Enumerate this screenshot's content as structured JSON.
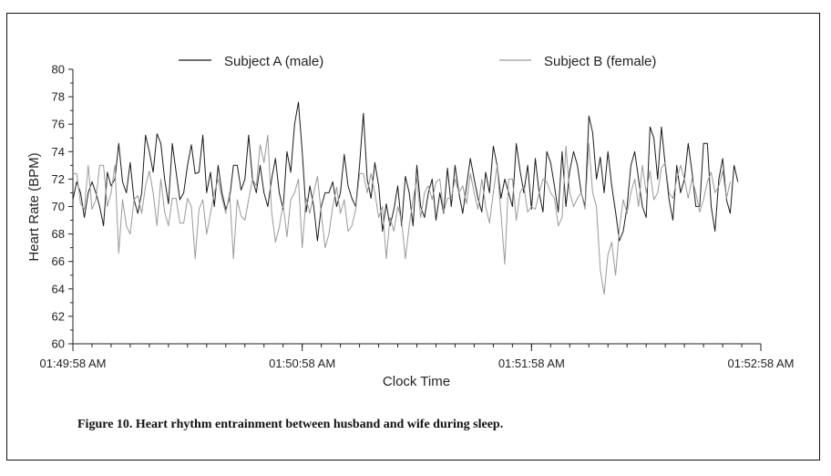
{
  "caption": "Figure 10. Heart rhythm entrainment between husband and wife during sleep.",
  "chart_data": {
    "type": "line",
    "title": "",
    "xlabel": "Clock Time",
    "ylabel": "Heart Rate (BPM)",
    "ylim": [
      60,
      80
    ],
    "yticks": [
      60,
      62,
      64,
      66,
      68,
      70,
      72,
      74,
      76,
      78,
      80
    ],
    "xlim_seconds": [
      0,
      180
    ],
    "xticks": [
      {
        "t": 0,
        "label": "01:49:58 AM"
      },
      {
        "t": 60,
        "label": "01:50:58 AM"
      },
      {
        "t": 120,
        "label": "01:51:58 AM"
      },
      {
        "t": 180,
        "label": "01:52:58 AM"
      }
    ],
    "grid": false,
    "legend": "top",
    "series": [
      {
        "name": "Subject A (male)",
        "color": "#1a1a1a",
        "t_step_seconds": 1,
        "values": [
          70.5,
          71.8,
          71.0,
          69.2,
          71.0,
          71.8,
          71.0,
          70.0,
          68.6,
          72.5,
          71.5,
          72.0,
          74.6,
          71.8,
          71.0,
          73.2,
          70.5,
          69.5,
          71.0,
          75.2,
          74.0,
          72.5,
          75.3,
          74.6,
          72.0,
          70.2,
          74.6,
          72.5,
          70.5,
          71.0,
          73.0,
          74.5,
          72.4,
          72.5,
          75.2,
          71.0,
          72.5,
          70.0,
          73.0,
          71.0,
          69.8,
          70.6,
          73.0,
          73.0,
          71.2,
          72.0,
          75.2,
          72.0,
          71.0,
          73.0,
          71.0,
          70.0,
          72.0,
          73.5,
          71.0,
          69.8,
          74.0,
          72.5,
          76.0,
          77.6,
          74.0,
          69.6,
          71.5,
          70.0,
          67.5,
          70.0,
          71.0,
          71.0,
          71.8,
          70.0,
          71.0,
          73.8,
          71.5,
          70.6,
          70.0,
          73.0,
          76.8,
          72.0,
          70.6,
          73.2,
          71.5,
          68.2,
          70.2,
          68.6,
          69.8,
          71.5,
          68.6,
          72.2,
          71.0,
          68.6,
          73.0,
          70.0,
          69.2,
          71.0,
          72.0,
          69.0,
          71.0,
          69.5,
          72.8,
          70.0,
          73.0,
          71.0,
          69.5,
          71.5,
          73.5,
          72.0,
          70.6,
          69.6,
          72.5,
          71.0,
          74.4,
          73.0,
          70.6,
          72.0,
          71.0,
          70.0,
          74.6,
          72.6,
          71.0,
          73.0,
          69.8,
          73.5,
          71.0,
          69.6,
          74.0,
          73.2,
          71.5,
          69.6,
          74.0,
          70.0,
          72.6,
          74.0,
          73.0,
          71.0,
          70.0,
          76.6,
          75.4,
          72.0,
          73.6,
          71.0,
          74.0,
          71.5,
          69.6,
          67.5,
          68.2,
          70.0,
          73.0,
          74.0,
          72.0,
          70.0,
          69.2,
          75.8,
          75.0,
          72.0,
          75.8,
          73.0,
          70.5,
          69.0,
          73.0,
          71.0,
          72.0,
          74.6,
          72.5,
          70.0,
          70.0,
          74.6,
          74.6,
          70.0,
          68.2,
          72.0,
          73.5,
          70.5,
          69.5,
          73.0,
          71.8
        ]
      },
      {
        "name": "Subject B (female)",
        "color": "#9a9a9a",
        "t_step_seconds": 1,
        "values": [
          72.4,
          72.4,
          70.2,
          69.8,
          73.0,
          69.8,
          70.5,
          73.0,
          73.0,
          70.0,
          71.0,
          73.0,
          66.6,
          70.5,
          68.6,
          68.0,
          70.5,
          70.8,
          69.5,
          71.5,
          72.6,
          71.0,
          68.6,
          72.0,
          69.6,
          68.6,
          70.6,
          70.6,
          68.8,
          68.8,
          70.6,
          70.0,
          66.2,
          69.8,
          70.5,
          68.0,
          69.5,
          71.0,
          72.0,
          70.6,
          69.5,
          71.0,
          66.2,
          70.5,
          69.3,
          69.0,
          70.5,
          72.0,
          71.5,
          74.5,
          73.2,
          75.2,
          69.6,
          67.4,
          68.5,
          70.2,
          67.8,
          70.5,
          71.0,
          72.0,
          67.0,
          70.6,
          69.5,
          71.0,
          72.2,
          69.5,
          67.0,
          68.0,
          70.0,
          71.4,
          69.5,
          70.5,
          68.2,
          68.6,
          69.8,
          72.4,
          72.4,
          71.0,
          72.4,
          71.0,
          69.2,
          70.0,
          66.2,
          69.2,
          68.2,
          70.0,
          69.0,
          66.2,
          68.6,
          70.5,
          72.0,
          69.2,
          71.0,
          71.5,
          70.5,
          71.8,
          72.0,
          69.6,
          70.6,
          70.6,
          72.0,
          71.0,
          71.5,
          70.2,
          72.4,
          71.0,
          69.8,
          72.0,
          70.0,
          68.8,
          71.0,
          73.0,
          69.5,
          65.8,
          72.0,
          72.0,
          69.0,
          71.0,
          71.5,
          69.6,
          70.0,
          69.8,
          71.0,
          72.0,
          71.8,
          71.0,
          70.6,
          68.6,
          69.2,
          74.4,
          71.0,
          70.0,
          70.6,
          71.0,
          69.8,
          74.6,
          71.0,
          70.0,
          65.4,
          63.6,
          66.5,
          67.4,
          65.0,
          68.4,
          70.5,
          69.5,
          71.0,
          72.0,
          70.0,
          73.0,
          71.0,
          72.6,
          70.5,
          71.0,
          72.8,
          73.2,
          71.0,
          70.6,
          72.0,
          73.0,
          72.0,
          70.6,
          72.0,
          71.0,
          69.6,
          70.5,
          71.8,
          72.5,
          71.0,
          71.5,
          72.6,
          70.6,
          71.8
        ]
      }
    ]
  }
}
